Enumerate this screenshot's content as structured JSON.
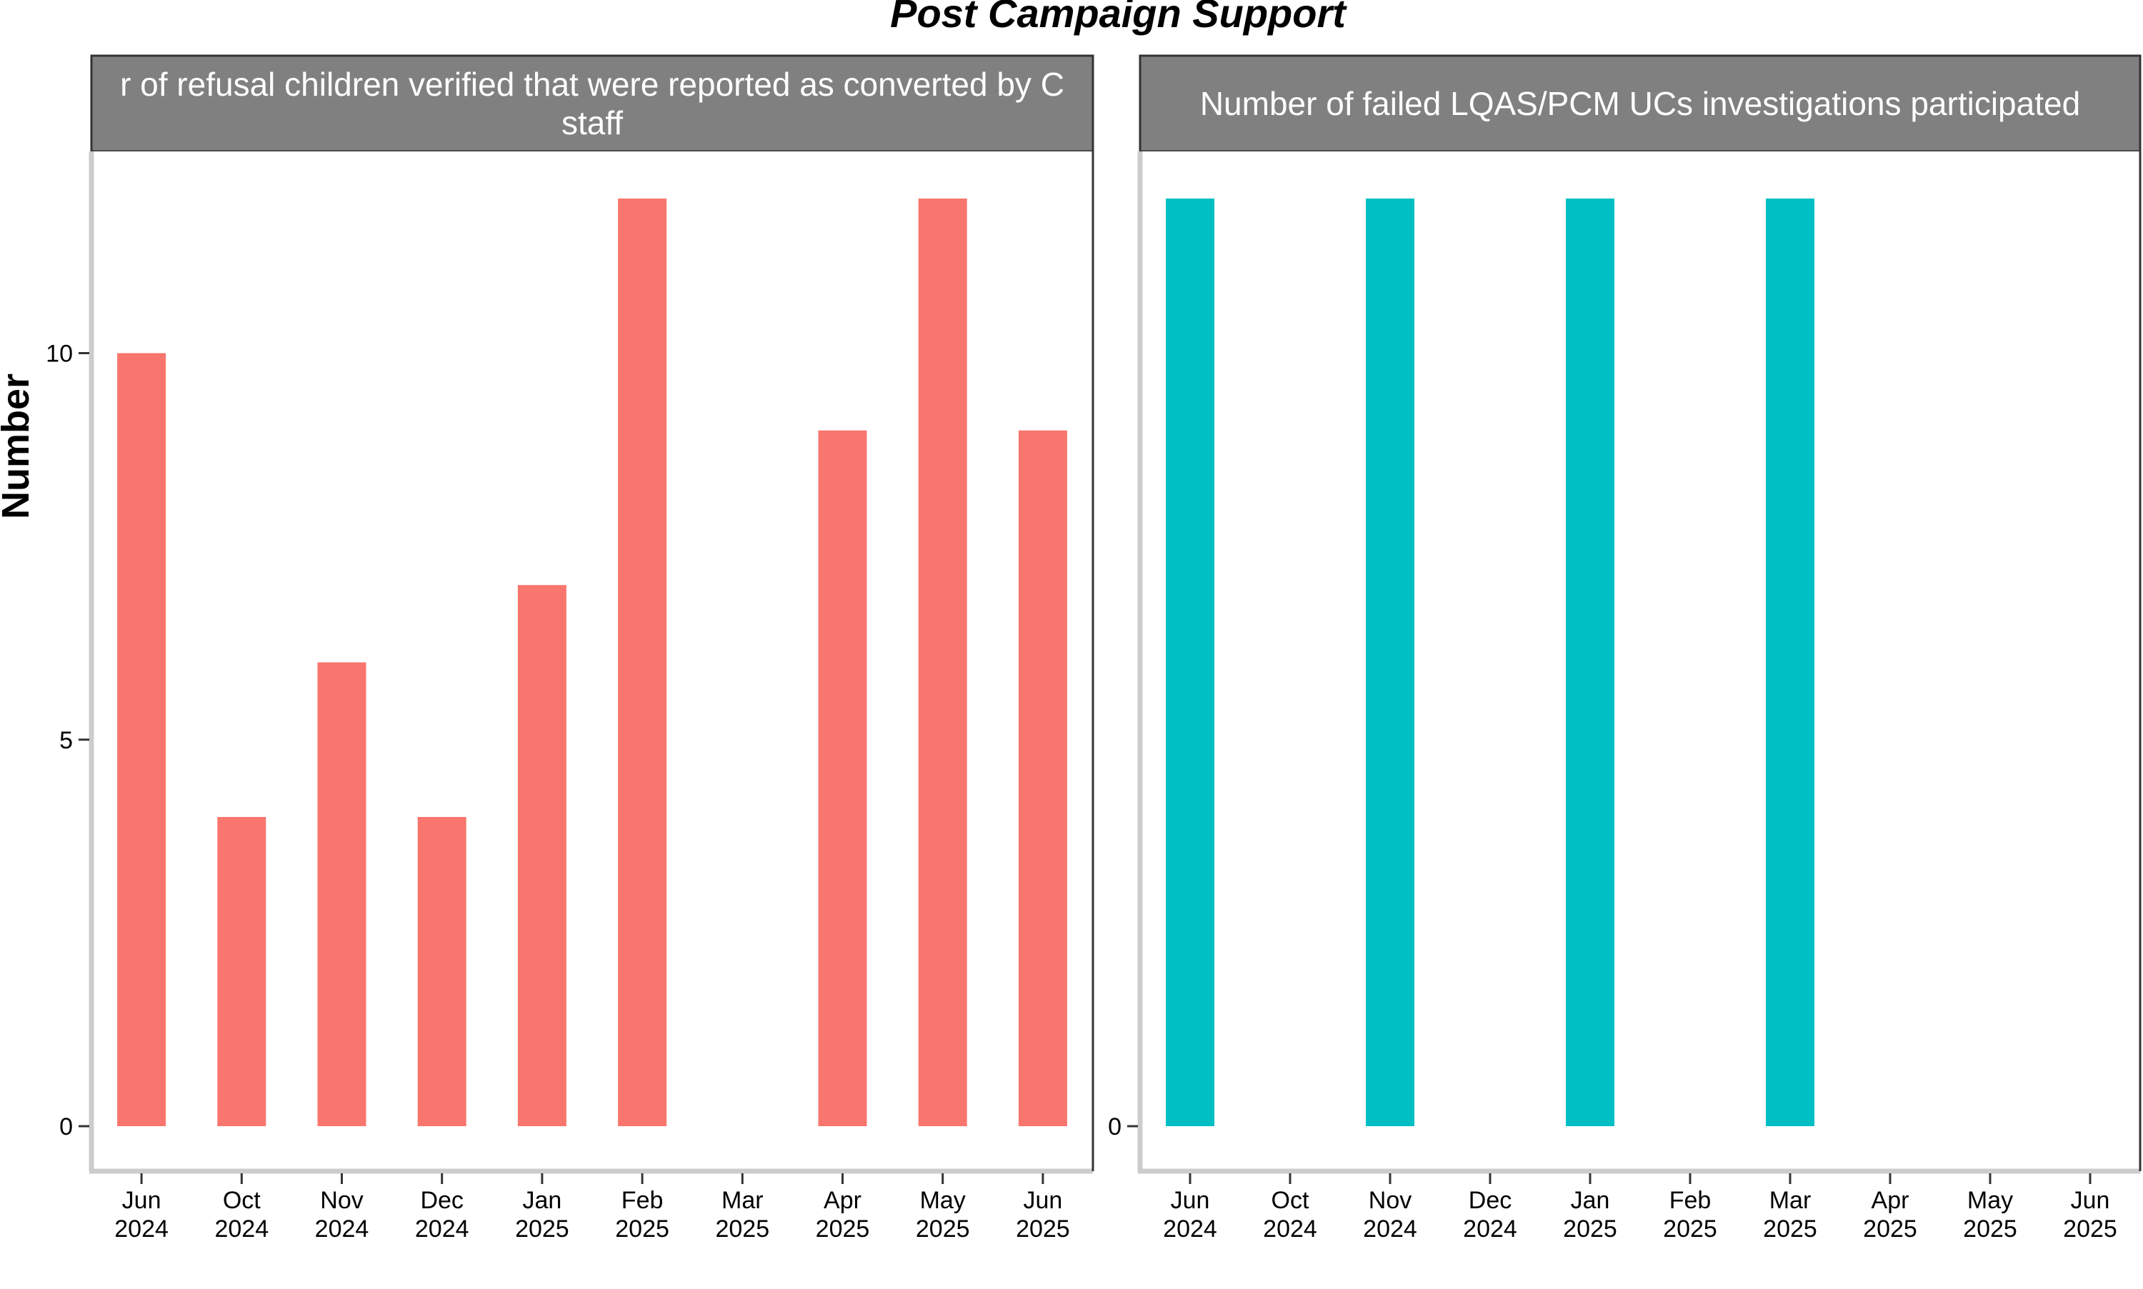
{
  "chart_data": {
    "type": "bar",
    "title": "Post Campaign Support",
    "ylabel": "Number",
    "categories": [
      "Jun\n2024",
      "Oct\n2024",
      "Nov\n2024",
      "Dec\n2024",
      "Jan\n2025",
      "Feb\n2025",
      "Mar\n2025",
      "Apr\n2025",
      "May\n2025",
      "Jun\n2025"
    ],
    "panels": [
      {
        "strip_label": "Number of refusal children verified that were reported as converted by CSS staff",
        "strip_lines": [
          "r of refusal children verified that were reported as converted by C",
          "staff"
        ],
        "color": "#F8766D",
        "values": [
          10,
          4,
          6,
          4,
          7,
          12,
          null,
          9,
          12,
          9
        ],
        "ylim": [
          0,
          12.6
        ],
        "yticks": [
          0,
          5,
          10
        ]
      },
      {
        "strip_label": "Number of failed LQAS/PCM UCs investigations participated",
        "strip_lines": [
          "Number of failed LQAS/PCM UCs investigations participated"
        ],
        "color": "#00BFC4",
        "values": [
          0,
          null,
          0,
          null,
          0,
          null,
          0,
          null,
          null,
          null
        ],
        "bar_top_fraction": 0.95,
        "yticks": [
          0
        ]
      }
    ],
    "grid": false,
    "legend": "none"
  }
}
